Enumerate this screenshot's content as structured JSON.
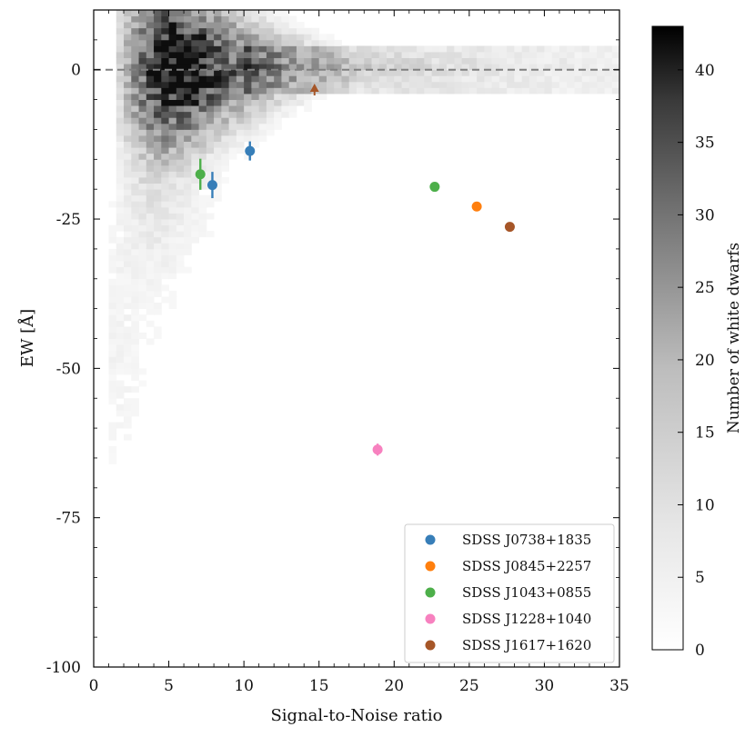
{
  "chart_data": {
    "type": "scatter",
    "xlabel": "Signal-to-Noise ratio",
    "ylabel": "EW [Å]",
    "xlim": [
      0,
      35
    ],
    "ylim": [
      -100,
      10
    ],
    "x_ticks": [
      "0",
      "5",
      "10",
      "15",
      "20",
      "25",
      "30",
      "35"
    ],
    "y_ticks": [
      "-100",
      "-75",
      "-50",
      "-25",
      "0"
    ],
    "reference_line": {
      "y": 0,
      "style": "dashed",
      "color": "#808080"
    },
    "background_histogram": {
      "type": "heatmap",
      "colormap": "Greys",
      "description_level": "2D density of white dwarfs, concentrated near EW 0 at S/N 3-12",
      "colorbar": {
        "label": "Number of white dwarfs",
        "range": [
          0,
          43
        ],
        "ticks": [
          "0",
          "5",
          "10",
          "15",
          "20",
          "25",
          "30",
          "35",
          "40"
        ]
      }
    },
    "legend_position": "lower-right",
    "series": [
      {
        "name": "SDSS J0738+1835",
        "color": "#377eb8",
        "points": [
          {
            "x": 7.9,
            "y": -19.3,
            "yerr": 2.2
          },
          {
            "x": 10.4,
            "y": -13.6,
            "yerr": 1.6
          }
        ]
      },
      {
        "name": "SDSS J0845+2257",
        "color": "#ff7f0e",
        "points": [
          {
            "x": 25.5,
            "y": -22.9,
            "yerr": 0
          }
        ]
      },
      {
        "name": "SDSS J1043+0855",
        "color": "#4daf4a",
        "points": [
          {
            "x": 7.1,
            "y": -17.5,
            "yerr": 2.6
          },
          {
            "x": 22.7,
            "y": -19.6,
            "yerr": 0
          }
        ]
      },
      {
        "name": "SDSS J1228+1040",
        "color": "#f781bf",
        "points": [
          {
            "x": 18.9,
            "y": -63.6,
            "yerr": 1.0
          }
        ]
      },
      {
        "name": "SDSS J1617+1620",
        "color": "#a65628",
        "points": [
          {
            "x": 27.7,
            "y": -26.3,
            "yerr": 0
          }
        ],
        "upper_limit": {
          "x": 14.7,
          "y": -4.3,
          "direction": "up"
        }
      }
    ]
  }
}
